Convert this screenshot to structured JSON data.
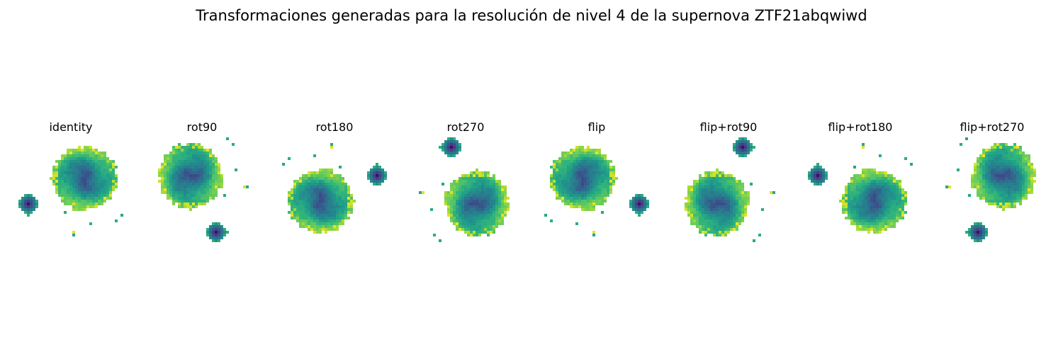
{
  "title": "Transformaciones generadas para la resolución de nivel 4 de la supernova ZTF21abqwiwd",
  "panels": [
    {
      "label": "identity",
      "rot": 0,
      "flip": false
    },
    {
      "label": "rot90",
      "rot": 90,
      "flip": false
    },
    {
      "label": "rot180",
      "rot": 180,
      "flip": false
    },
    {
      "label": "rot270",
      "rot": 270,
      "flip": false
    },
    {
      "label": "flip",
      "rot": 0,
      "flip": true
    },
    {
      "label": "flip+rot90",
      "rot": 90,
      "flip": true
    },
    {
      "label": "flip+rot180",
      "rot": 180,
      "flip": true
    },
    {
      "label": "flip+rot270",
      "rot": 270,
      "flip": true
    }
  ],
  "colormap": "viridis",
  "colors": {
    "background": "#ffffff",
    "dark": "#440154",
    "mid": "#21918c",
    "bright": "#fde725"
  }
}
